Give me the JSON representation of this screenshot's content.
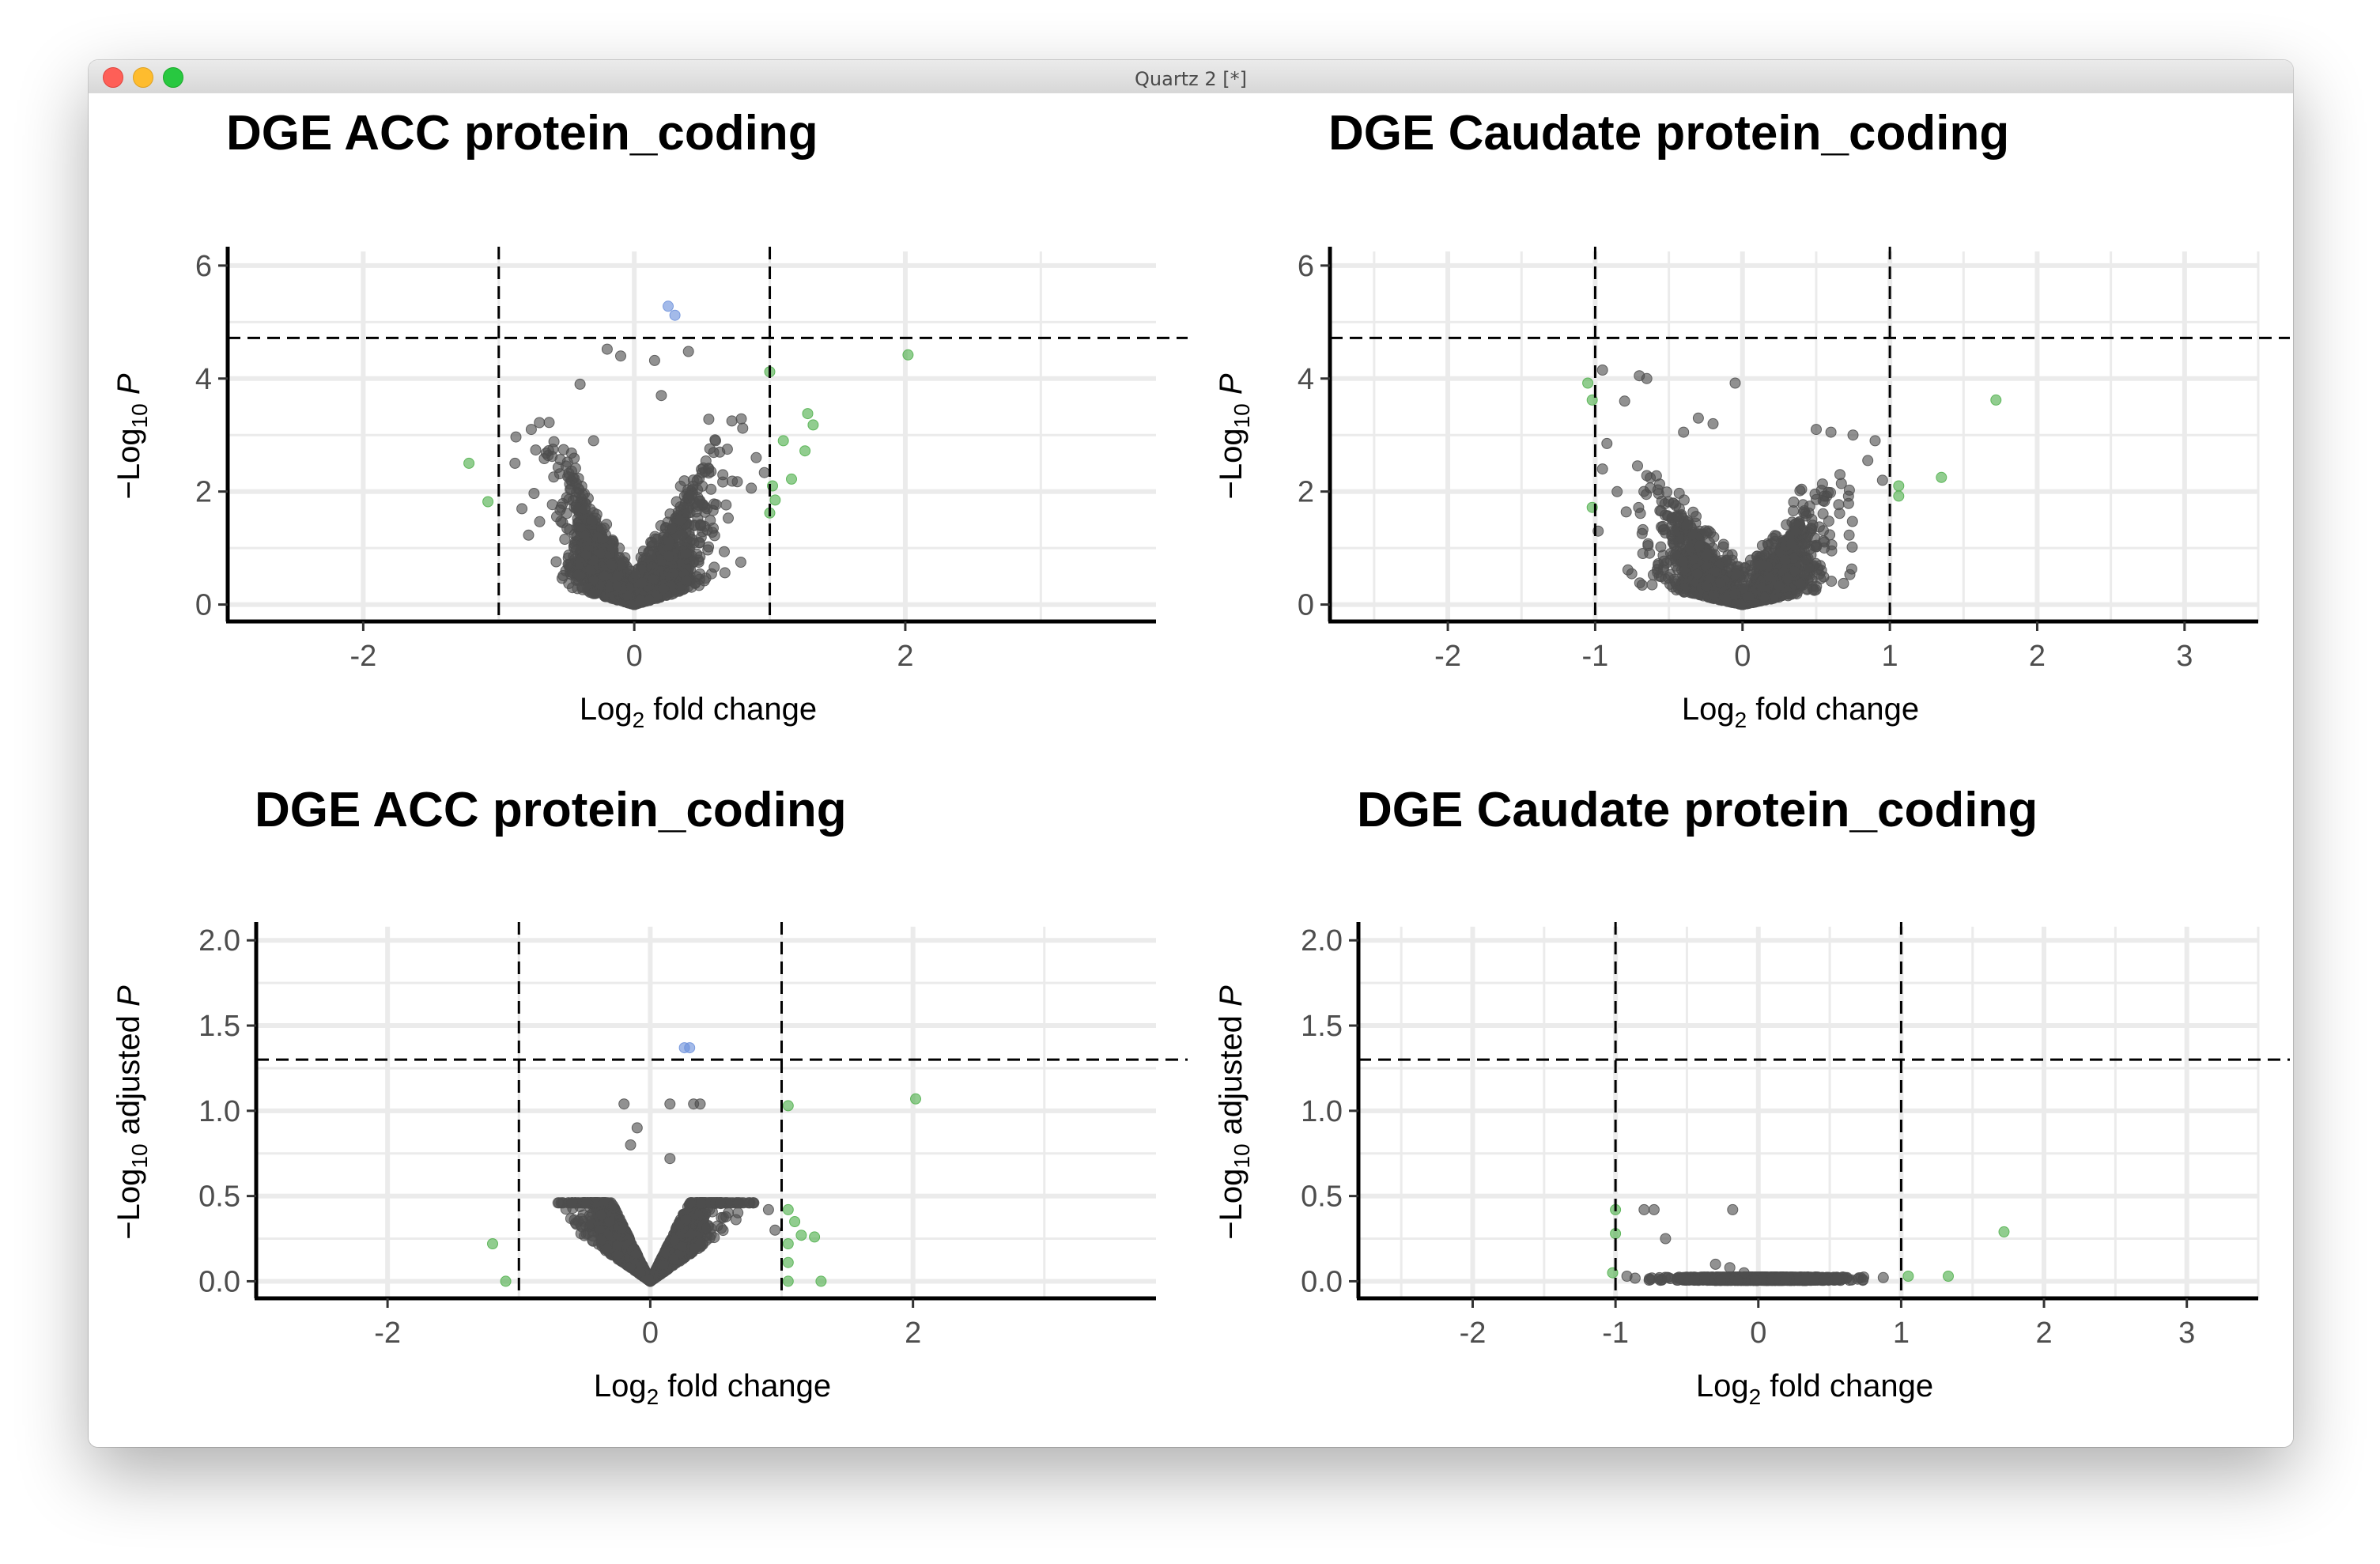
{
  "window": {
    "title": "Quartz 2 [*]",
    "buttons": [
      "close",
      "minimize",
      "zoom"
    ]
  },
  "colors": {
    "ns": "#4d4d4d",
    "fc": "#4daf4a",
    "p": "#6b8fdb",
    "grid": "#ebebeb",
    "axis": "#000000"
  },
  "chart_data": [
    {
      "type": "scatter",
      "title": "DGE ACC protein_coding",
      "xlabel": "Log2 fold change",
      "ylabel": "−Log10 P",
      "xlim": [
        -3,
        3.85
      ],
      "ylim": [
        -0.3,
        6.25
      ],
      "xticks": [
        -2,
        0,
        2
      ],
      "yticks": [
        0,
        2,
        4,
        6
      ],
      "hline": 4.72,
      "vlines": [
        -1,
        1
      ],
      "legend": "none",
      "shape": {
        "ymax": 3.2,
        "left": -0.95,
        "right": 1.05
      },
      "points": {
        "fc": [
          [
            -1.22,
            2.5
          ],
          [
            -1.08,
            1.82
          ],
          [
            1.0,
            4.12
          ],
          [
            2.02,
            4.42
          ],
          [
            1.28,
            3.38
          ],
          [
            1.32,
            3.18
          ],
          [
            1.1,
            2.9
          ],
          [
            1.26,
            2.72
          ],
          [
            1.16,
            2.22
          ],
          [
            1.02,
            2.1
          ],
          [
            1.04,
            1.85
          ],
          [
            1.0,
            1.62
          ]
        ],
        "p": [
          [
            0.25,
            5.28
          ],
          [
            0.3,
            5.12
          ]
        ],
        "ns": [
          [
            -0.2,
            4.52
          ],
          [
            -0.1,
            4.4
          ],
          [
            0.15,
            4.32
          ],
          [
            0.4,
            4.48
          ],
          [
            -0.4,
            3.9
          ],
          [
            0.2,
            3.7
          ],
          [
            -0.7,
            3.22
          ],
          [
            -0.76,
            3.1
          ],
          [
            0.8,
            3.12
          ],
          [
            0.72,
            3.25
          ],
          [
            -0.3,
            2.9
          ],
          [
            0.55,
            3.28
          ],
          [
            -0.88,
            2.5
          ],
          [
            0.9,
            2.6
          ],
          [
            -0.6,
            2.75
          ],
          [
            0.6,
            2.9
          ]
        ]
      }
    },
    {
      "type": "scatter",
      "title": "DGE Caudate protein_coding",
      "xlabel": "Log2 fold change",
      "ylabel": "−Log10 P",
      "xlim": [
        -2.8,
        3.5
      ],
      "ylim": [
        -0.3,
        6.25
      ],
      "xticks": [
        -2,
        -1,
        0,
        1,
        2,
        3
      ],
      "yticks": [
        0,
        2,
        4,
        6
      ],
      "hline": 4.72,
      "vlines": [
        -1,
        1
      ],
      "legend": "none",
      "shape": {
        "ymax": 2.5,
        "left": -1.0,
        "right": 1.0
      },
      "points": {
        "fc": [
          [
            -1.05,
            3.92
          ],
          [
            -1.02,
            3.62
          ],
          [
            1.72,
            3.62
          ],
          [
            1.35,
            2.25
          ],
          [
            1.06,
            2.1
          ],
          [
            1.06,
            1.92
          ],
          [
            -1.02,
            1.72
          ]
        ],
        "p": [],
        "ns": [
          [
            -0.95,
            4.15
          ],
          [
            -0.7,
            4.05
          ],
          [
            -0.65,
            4.0
          ],
          [
            -0.05,
            3.92
          ],
          [
            -0.92,
            2.85
          ],
          [
            -0.8,
            3.6
          ],
          [
            0.6,
            3.05
          ],
          [
            0.5,
            3.1
          ],
          [
            0.75,
            3.0
          ],
          [
            0.9,
            2.9
          ],
          [
            -0.4,
            3.05
          ],
          [
            -0.2,
            3.2
          ],
          [
            -0.3,
            3.3
          ],
          [
            0.85,
            2.55
          ],
          [
            -0.95,
            2.4
          ],
          [
            0.95,
            2.2
          ],
          [
            -0.98,
            1.3
          ]
        ]
      }
    },
    {
      "type": "scatter",
      "title": "DGE ACC protein_coding",
      "xlabel": "Log2 fold change",
      "ylabel": "−Log10 adjusted P",
      "xlim": [
        -3,
        3.85
      ],
      "ylim": [
        -0.1,
        2.08
      ],
      "xticks": [
        -2,
        0,
        2
      ],
      "yticks": [
        0.0,
        0.5,
        1.0,
        1.5,
        2.0
      ],
      "yticklabels": [
        "0.0",
        "0.5",
        "1.0",
        "1.5",
        "2.0"
      ],
      "hline": 1.3,
      "vlines": [
        -1,
        1
      ],
      "legend": "none",
      "shape": {
        "ymax": 0.46,
        "left": -0.72,
        "right": 0.82,
        "flat": 0.46
      },
      "points": {
        "fc": [
          [
            -1.2,
            0.22
          ],
          [
            -1.1,
            0.0
          ],
          [
            2.02,
            1.07
          ],
          [
            1.05,
            1.03
          ],
          [
            1.05,
            0.42
          ],
          [
            1.1,
            0.35
          ],
          [
            1.25,
            0.26
          ],
          [
            1.15,
            0.27
          ],
          [
            1.05,
            0.22
          ],
          [
            1.05,
            0.11
          ],
          [
            1.05,
            0.0
          ],
          [
            1.3,
            0.0
          ]
        ],
        "p": [
          [
            0.26,
            1.37
          ],
          [
            0.3,
            1.37
          ]
        ],
        "ns": [
          [
            -0.2,
            1.04
          ],
          [
            -0.1,
            0.9
          ],
          [
            0.15,
            1.04
          ],
          [
            0.33,
            1.04
          ],
          [
            0.38,
            1.04
          ],
          [
            -0.15,
            0.8
          ],
          [
            0.15,
            0.72
          ],
          [
            0.9,
            0.42
          ],
          [
            0.95,
            0.3
          ]
        ]
      }
    },
    {
      "type": "scatter",
      "title": "DGE Caudate protein_coding",
      "xlabel": "Log2 fold change",
      "ylabel": "−Log10 adjusted P",
      "xlim": [
        -2.8,
        3.5
      ],
      "ylim": [
        -0.1,
        2.08
      ],
      "xticks": [
        -2,
        -1,
        0,
        1,
        2,
        3
      ],
      "yticks": [
        0.0,
        0.5,
        1.0,
        1.5,
        2.0
      ],
      "yticklabels": [
        "0.0",
        "0.5",
        "1.0",
        "1.5",
        "2.0"
      ],
      "hline": 1.3,
      "vlines": [
        -1,
        1
      ],
      "legend": "none",
      "shape": {
        "ymax": 0.03,
        "left": -0.95,
        "right": 0.9,
        "flat": 0.03
      },
      "points": {
        "fc": [
          [
            -1.0,
            0.42
          ],
          [
            -1.0,
            0.28
          ],
          [
            1.72,
            0.29
          ],
          [
            1.05,
            0.03
          ],
          [
            1.33,
            0.03
          ],
          [
            -1.02,
            0.05
          ]
        ],
        "p": [],
        "ns": [
          [
            -0.8,
            0.42
          ],
          [
            -0.73,
            0.42
          ],
          [
            -0.18,
            0.42
          ],
          [
            -0.65,
            0.25
          ],
          [
            -0.3,
            0.1
          ],
          [
            -0.2,
            0.08
          ],
          [
            -0.1,
            0.05
          ],
          [
            -0.92,
            0.03
          ]
        ]
      }
    }
  ]
}
